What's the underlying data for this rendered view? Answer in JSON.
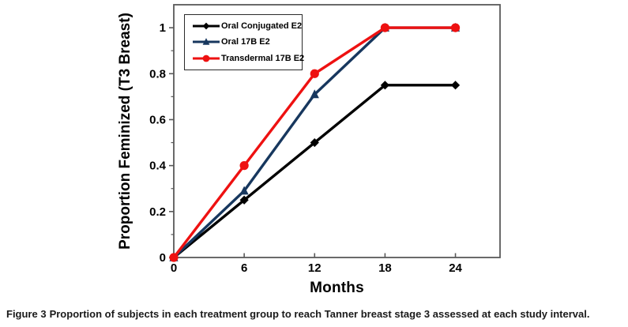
{
  "figure": {
    "caption_label": "Figure 3",
    "caption_text": "Proportion of subjects in each treatment group to reach Tanner breast stage 3 assessed at each study interval."
  },
  "chart_data": {
    "type": "line",
    "title": "",
    "xlabel": "Months",
    "ylabel": "Proportion Feminized (T3 Breast)",
    "x": [
      0,
      6,
      12,
      18,
      24
    ],
    "series": [
      {
        "name": "Oral Conjugated E2",
        "color": "#000000",
        "marker": "diamond",
        "values": [
          0,
          0.25,
          0.5,
          0.75,
          0.75
        ]
      },
      {
        "name": "Oral 17B E2",
        "color": "#17375E",
        "marker": "triangle-up",
        "values": [
          0,
          0.29,
          0.71,
          1.0,
          1.0
        ]
      },
      {
        "name": "Transdermal 17B E2",
        "color": "#EE1111",
        "marker": "circle",
        "values": [
          0,
          0.4,
          0.8,
          1.0,
          1.0
        ]
      }
    ],
    "xticks": [
      0,
      6,
      12,
      18,
      24
    ],
    "xtick_labels": [
      "0",
      "6",
      "12",
      "18",
      "24"
    ],
    "yticks": [
      0,
      0.2,
      0.4,
      0.6,
      0.8,
      1
    ],
    "ytick_labels": [
      "0",
      "0.2",
      "0.4",
      "0.6",
      "0.8",
      "1"
    ],
    "y_minor_ticks": [
      0.1,
      0.3,
      0.5,
      0.7,
      0.9
    ],
    "xlim": [
      0,
      27.8
    ],
    "ylim": [
      0,
      1.1
    ],
    "grid": false,
    "legend_position": "upper-left-inside",
    "frame_color": "#595959",
    "axis_text_color": "#000000"
  }
}
